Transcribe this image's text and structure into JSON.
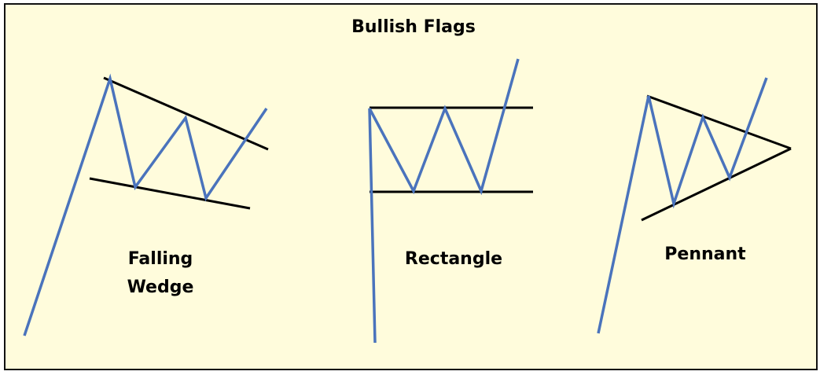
{
  "title": "Bullish Flags",
  "colors": {
    "background": "#FFFCDC",
    "border": "#111111",
    "price_line": "#4A73BC",
    "trend_line": "#000000"
  },
  "patterns": [
    {
      "label_line1": "Falling",
      "label_line2": "Wedge"
    },
    {
      "label_line1": "Rectangle"
    },
    {
      "label_line1": "Pennant"
    }
  ]
}
